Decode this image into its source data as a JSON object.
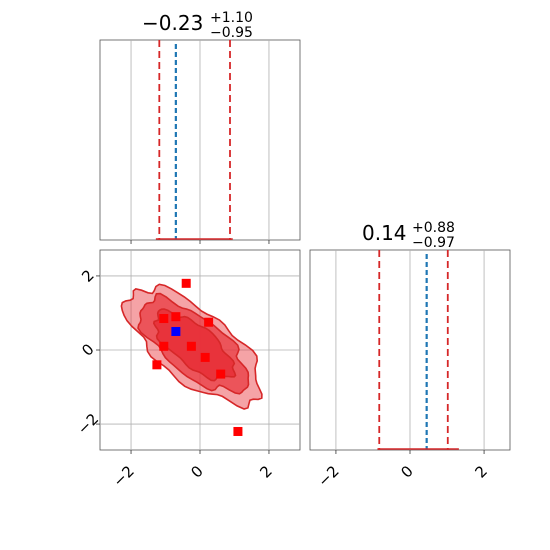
{
  "chart_data": {
    "type": "corner",
    "grid": true,
    "colors": {
      "hist": "#1f77b4",
      "quantile": "#d62728",
      "contour_fill": "#e8323a",
      "contour_line": "#d62728",
      "points": "#ff0000",
      "marker": "#0000ff",
      "grid": "#b0b0b0"
    },
    "params": [
      {
        "title": {
          "median": "−0.23",
          "plus": "+1.10",
          "minus": "−0.95"
        },
        "median": -0.23,
        "quantiles": [
          -1.18,
          0.87
        ],
        "hist_peak": -0.7,
        "range": [
          -2.9,
          2.9
        ],
        "ticks": [
          -2,
          0,
          2
        ],
        "tick_labels": [
          "−2",
          "0",
          "2"
        ]
      },
      {
        "title": {
          "median": "0.14",
          "plus": "+0.88",
          "minus": "−0.97"
        },
        "median": 0.14,
        "quantiles": [
          -0.83,
          1.02
        ],
        "hist_peak": 0.45,
        "range": [
          -2.7,
          2.7
        ],
        "ticks": [
          -2,
          0,
          2
        ],
        "tick_labels": [
          "−2",
          "0",
          "2"
        ]
      }
    ],
    "scatter": {
      "x": [
        -0.4,
        -1.05,
        -0.7,
        0.25,
        -1.05,
        -0.25,
        0.15,
        -1.25,
        0.6,
        1.1
      ],
      "y": [
        1.8,
        0.85,
        0.9,
        0.75,
        0.1,
        0.1,
        -0.2,
        -0.4,
        -0.65,
        -2.2
      ]
    },
    "marker": {
      "x": -0.7,
      "y": 0.5
    },
    "contours": {
      "levels": 3,
      "center": [
        -0.18,
        0.12
      ],
      "correlation": -0.72,
      "radii": [
        [
          1.35,
          0.55
        ],
        [
          1.85,
          0.78
        ],
        [
          2.3,
          0.98
        ]
      ]
    }
  }
}
